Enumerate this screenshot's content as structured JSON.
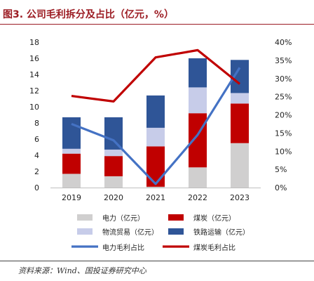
{
  "figure_title": "图3. 公司毛利拆分及占比（亿元，%）",
  "source_note": "资料来源：Wind、国投证券研究中心",
  "colors": {
    "electricity": "#d0cfcf",
    "coal": "#c00000",
    "logistics": "#c7cce9",
    "railway": "#2f5597",
    "power_share_line": "#4472c4",
    "coal_share_line": "#c00000",
    "title": "#9c1c23"
  },
  "chart_data": {
    "type": "bar",
    "stacked": true,
    "categories": [
      "2019",
      "2020",
      "2021",
      "2022",
      "2023"
    ],
    "ylim": [
      0,
      18
    ],
    "y_ticks": [
      "0",
      "2",
      "4",
      "6",
      "8",
      "10",
      "12",
      "14",
      "16",
      "18"
    ],
    "y2lim": [
      0,
      40
    ],
    "y2_ticks": [
      "0%",
      "5%",
      "10%",
      "15%",
      "20%",
      "25%",
      "30%",
      "35%",
      "40%"
    ],
    "grid": false,
    "legend_position": "bottom",
    "series": [
      {
        "name": "电力（亿元）",
        "type": "bar",
        "axis": "left",
        "color_key": "electricity",
        "values": [
          1.7,
          1.4,
          0.1,
          2.5,
          5.5
        ]
      },
      {
        "name": "煤炭（亿元）",
        "type": "bar",
        "axis": "left",
        "color_key": "coal",
        "values": [
          2.5,
          2.5,
          5.0,
          6.7,
          4.9
        ]
      },
      {
        "name": "物流贸易（亿元）",
        "type": "bar",
        "axis": "left",
        "color_key": "logistics",
        "values": [
          0.6,
          0.8,
          2.3,
          3.2,
          1.3
        ]
      },
      {
        "name": "铁路运输（亿元）",
        "type": "bar",
        "axis": "left",
        "color_key": "railway",
        "values": [
          3.9,
          4.0,
          4.0,
          3.6,
          4.1
        ]
      },
      {
        "name": "电力毛利占比",
        "type": "line",
        "axis": "right",
        "color_key": "power_share_line",
        "values": [
          17.5,
          13.0,
          1.0,
          14.5,
          33.0
        ]
      },
      {
        "name": "煤炭毛利占比",
        "type": "line",
        "axis": "right",
        "color_key": "coal_share_line",
        "values": [
          25.2,
          23.7,
          35.8,
          37.8,
          28.5
        ]
      }
    ]
  }
}
